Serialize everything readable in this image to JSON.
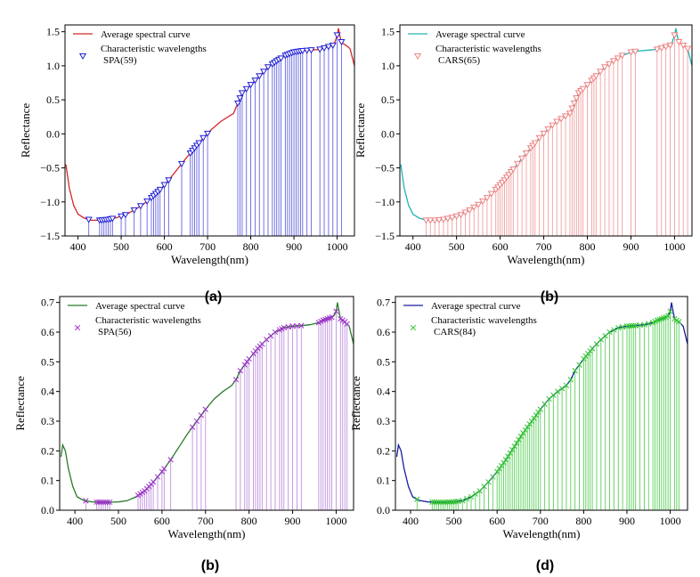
{
  "colors": {
    "black": "#000000",
    "a_line": "#d62728",
    "a_marker": "#1f1fd6",
    "a_stem": "#6666e0",
    "b_line": "#21b2b2",
    "b_marker": "#f08080",
    "b_stem": "#f0a0a0",
    "c_line": "#2a7a2a",
    "c_marker": "#9b30c8",
    "c_stem": "#c090e0",
    "d_line": "#1a1aa8",
    "d_marker": "#2ec42e",
    "d_stem": "#5cd05c"
  },
  "chart_data": [
    {
      "id": "a",
      "type": "line",
      "panel_label": "(a)",
      "xlabel": "Wavelength(nm)",
      "ylabel": "Reflectance",
      "xlim": [
        370,
        1040
      ],
      "ylim": [
        -1.5,
        1.6
      ],
      "xticks": [
        400,
        500,
        600,
        700,
        800,
        900,
        1000
      ],
      "yticks": [
        -1.5,
        -1.0,
        -0.5,
        0.0,
        0.5,
        1.0,
        1.5
      ],
      "ytick_labels": [
        "−1.5",
        "−1.0",
        "−0.5",
        "0.0",
        "0.5",
        "1.0",
        "1.5"
      ],
      "legend": {
        "line": "Average spectral curve",
        "markers_1": "Characteristic wavelengths",
        "markers_2": "SPA(59)",
        "marker": "triangle",
        "position": "top-left"
      },
      "curve_x": [
        372,
        380,
        390,
        400,
        415,
        430,
        450,
        470,
        490,
        510,
        530,
        550,
        570,
        590,
        610,
        630,
        650,
        670,
        690,
        710,
        730,
        750,
        760,
        770,
        780,
        800,
        820,
        840,
        860,
        880,
        900,
        920,
        940,
        960,
        970,
        980,
        990,
        995,
        1000,
        1003,
        1006,
        1010,
        1015,
        1020,
        1025,
        1030,
        1040
      ],
      "curve_y": [
        -0.45,
        -0.8,
        -1.05,
        -1.18,
        -1.24,
        -1.27,
        -1.27,
        -1.26,
        -1.23,
        -1.19,
        -1.12,
        -1.04,
        -0.94,
        -0.82,
        -0.68,
        -0.52,
        -0.36,
        -0.21,
        -0.06,
        0.07,
        0.18,
        0.26,
        0.3,
        0.45,
        0.6,
        0.72,
        0.85,
        0.98,
        1.07,
        1.15,
        1.2,
        1.22,
        1.23,
        1.24,
        1.26,
        1.28,
        1.3,
        1.35,
        1.45,
        1.55,
        1.44,
        1.35,
        1.32,
        1.3,
        1.28,
        1.25,
        1.0
      ],
      "selected_x": [
        425,
        450,
        455,
        460,
        465,
        470,
        475,
        480,
        500,
        510,
        530,
        545,
        560,
        570,
        575,
        580,
        585,
        590,
        600,
        610,
        640,
        660,
        665,
        670,
        675,
        680,
        690,
        700,
        770,
        775,
        780,
        790,
        800,
        810,
        820,
        830,
        840,
        850,
        855,
        860,
        865,
        870,
        880,
        885,
        890,
        895,
        900,
        905,
        910,
        915,
        920,
        930,
        940,
        960,
        970,
        980,
        990,
        1000,
        1010
      ]
    },
    {
      "id": "b",
      "type": "line",
      "panel_label": "(b)",
      "xlabel": "Wavelength(nm)",
      "ylabel": "Reflectance",
      "xlim": [
        370,
        1040
      ],
      "ylim": [
        -1.5,
        1.6
      ],
      "xticks": [
        400,
        500,
        600,
        700,
        800,
        900,
        1000
      ],
      "yticks": [
        -1.5,
        -1.0,
        -0.5,
        0.0,
        0.5,
        1.0,
        1.5
      ],
      "ytick_labels": [
        "−1.5",
        "−1.0",
        "−0.5",
        "0.0",
        "0.5",
        "1.0",
        "1.5"
      ],
      "legend": {
        "line": "Average spectral curve",
        "markers_1": "Characteristic wavelengths",
        "markers_2": "CARS(65)",
        "marker": "triangle",
        "position": "top-left"
      },
      "curve_x": [
        372,
        380,
        390,
        400,
        415,
        430,
        450,
        470,
        490,
        510,
        530,
        550,
        570,
        590,
        610,
        630,
        650,
        670,
        690,
        710,
        730,
        750,
        760,
        770,
        780,
        800,
        820,
        840,
        860,
        880,
        900,
        920,
        940,
        960,
        970,
        980,
        990,
        995,
        1000,
        1003,
        1006,
        1010,
        1015,
        1020,
        1025,
        1030,
        1040
      ],
      "curve_y": [
        -0.45,
        -0.8,
        -1.05,
        -1.18,
        -1.24,
        -1.27,
        -1.27,
        -1.26,
        -1.23,
        -1.19,
        -1.12,
        -1.04,
        -0.94,
        -0.82,
        -0.68,
        -0.52,
        -0.36,
        -0.21,
        -0.06,
        0.07,
        0.18,
        0.26,
        0.3,
        0.45,
        0.6,
        0.72,
        0.85,
        0.98,
        1.07,
        1.15,
        1.2,
        1.22,
        1.23,
        1.24,
        1.26,
        1.28,
        1.3,
        1.35,
        1.45,
        1.55,
        1.44,
        1.35,
        1.32,
        1.3,
        1.28,
        1.25,
        1.0
      ],
      "selected_x": [
        430,
        440,
        450,
        460,
        470,
        480,
        490,
        500,
        510,
        520,
        530,
        540,
        550,
        560,
        570,
        580,
        590,
        595,
        600,
        605,
        610,
        615,
        620,
        625,
        630,
        640,
        650,
        660,
        670,
        675,
        680,
        690,
        700,
        710,
        720,
        730,
        740,
        750,
        760,
        765,
        770,
        775,
        780,
        785,
        790,
        800,
        810,
        815,
        820,
        830,
        840,
        850,
        860,
        870,
        880,
        900,
        910,
        960,
        970,
        980,
        990,
        1000,
        1010,
        1020,
        1030
      ]
    },
    {
      "id": "c",
      "type": "line",
      "panel_label": "(b)",
      "xlabel": "Wavelength(nm)",
      "ylabel": "Reflectance",
      "xlim": [
        365,
        1040
      ],
      "ylim": [
        0.0,
        0.72
      ],
      "xticks": [
        400,
        500,
        600,
        700,
        800,
        900,
        1000
      ],
      "yticks": [
        0.0,
        0.1,
        0.2,
        0.3,
        0.4,
        0.5,
        0.6,
        0.7
      ],
      "ytick_labels": [
        "0.0",
        "0.1",
        "0.2",
        "0.3",
        "0.4",
        "0.5",
        "0.6",
        "0.7"
      ],
      "legend": {
        "line": "Average spectral curve",
        "markers_1": "Characteristic wavelengths",
        "markers_2": "SPA(56)",
        "marker": "x",
        "position": "top-left"
      },
      "curve_x": [
        368,
        372,
        378,
        385,
        395,
        405,
        420,
        440,
        460,
        480,
        500,
        520,
        540,
        560,
        580,
        600,
        620,
        640,
        660,
        680,
        700,
        720,
        740,
        760,
        770,
        780,
        800,
        820,
        840,
        860,
        880,
        900,
        920,
        940,
        960,
        970,
        980,
        990,
        995,
        1000,
        1003,
        1006,
        1010,
        1015,
        1020,
        1030,
        1040
      ],
      "curve_y": [
        0.18,
        0.22,
        0.2,
        0.14,
        0.08,
        0.045,
        0.033,
        0.028,
        0.027,
        0.027,
        0.028,
        0.032,
        0.045,
        0.065,
        0.095,
        0.13,
        0.17,
        0.215,
        0.26,
        0.3,
        0.34,
        0.375,
        0.4,
        0.42,
        0.44,
        0.47,
        0.51,
        0.545,
        0.575,
        0.6,
        0.615,
        0.62,
        0.622,
        0.625,
        0.632,
        0.64,
        0.645,
        0.65,
        0.655,
        0.67,
        0.7,
        0.675,
        0.645,
        0.64,
        0.635,
        0.62,
        0.56
      ],
      "selected_x": [
        425,
        450,
        455,
        460,
        465,
        470,
        475,
        480,
        545,
        550,
        555,
        560,
        565,
        570,
        575,
        580,
        590,
        600,
        605,
        620,
        670,
        680,
        690,
        700,
        770,
        780,
        790,
        795,
        800,
        810,
        815,
        820,
        825,
        830,
        840,
        850,
        860,
        870,
        875,
        880,
        890,
        900,
        910,
        920,
        960,
        965,
        970,
        975,
        980,
        985,
        990,
        1000,
        1010,
        1015,
        1020,
        1025
      ]
    },
    {
      "id": "d",
      "type": "line",
      "panel_label": "(d)",
      "xlabel": "Wavelength(nm)",
      "ylabel": "Reflectance",
      "xlim": [
        365,
        1040
      ],
      "ylim": [
        0.0,
        0.72
      ],
      "xticks": [
        400,
        500,
        600,
        700,
        800,
        900,
        1000
      ],
      "yticks": [
        0.0,
        0.1,
        0.2,
        0.3,
        0.4,
        0.5,
        0.6,
        0.7
      ],
      "ytick_labels": [
        "0.0",
        "0.1",
        "0.2",
        "0.3",
        "0.4",
        "0.5",
        "0.6",
        "0.7"
      ],
      "legend": {
        "line": "Average spectral curve",
        "markers_1": "Characteristic wavelengths",
        "markers_2": "CARS(84)",
        "marker": "x",
        "position": "top-left"
      },
      "curve_x": [
        368,
        372,
        378,
        385,
        395,
        405,
        420,
        440,
        460,
        480,
        500,
        520,
        540,
        560,
        580,
        600,
        620,
        640,
        660,
        680,
        700,
        720,
        740,
        760,
        770,
        780,
        800,
        820,
        840,
        860,
        880,
        900,
        920,
        940,
        960,
        970,
        980,
        990,
        995,
        1000,
        1003,
        1006,
        1010,
        1015,
        1020,
        1030,
        1040
      ],
      "curve_y": [
        0.18,
        0.22,
        0.2,
        0.14,
        0.08,
        0.045,
        0.033,
        0.028,
        0.027,
        0.027,
        0.028,
        0.032,
        0.045,
        0.065,
        0.095,
        0.13,
        0.17,
        0.215,
        0.26,
        0.3,
        0.34,
        0.375,
        0.4,
        0.42,
        0.44,
        0.47,
        0.51,
        0.545,
        0.575,
        0.6,
        0.615,
        0.62,
        0.622,
        0.625,
        0.632,
        0.64,
        0.645,
        0.65,
        0.655,
        0.67,
        0.7,
        0.675,
        0.645,
        0.64,
        0.635,
        0.62,
        0.56
      ],
      "selected_x": [
        415,
        450,
        455,
        460,
        465,
        470,
        475,
        480,
        485,
        490,
        495,
        500,
        505,
        510,
        520,
        530,
        540,
        550,
        560,
        570,
        580,
        590,
        600,
        605,
        610,
        615,
        620,
        625,
        630,
        635,
        640,
        645,
        650,
        655,
        660,
        665,
        670,
        675,
        680,
        685,
        690,
        695,
        700,
        710,
        720,
        730,
        740,
        750,
        760,
        770,
        780,
        790,
        800,
        805,
        810,
        815,
        820,
        830,
        840,
        850,
        860,
        870,
        880,
        890,
        900,
        905,
        910,
        915,
        920,
        930,
        940,
        950,
        960,
        965,
        970,
        975,
        980,
        985,
        990,
        995,
        1000,
        1010,
        1015,
        1020
      ]
    }
  ]
}
